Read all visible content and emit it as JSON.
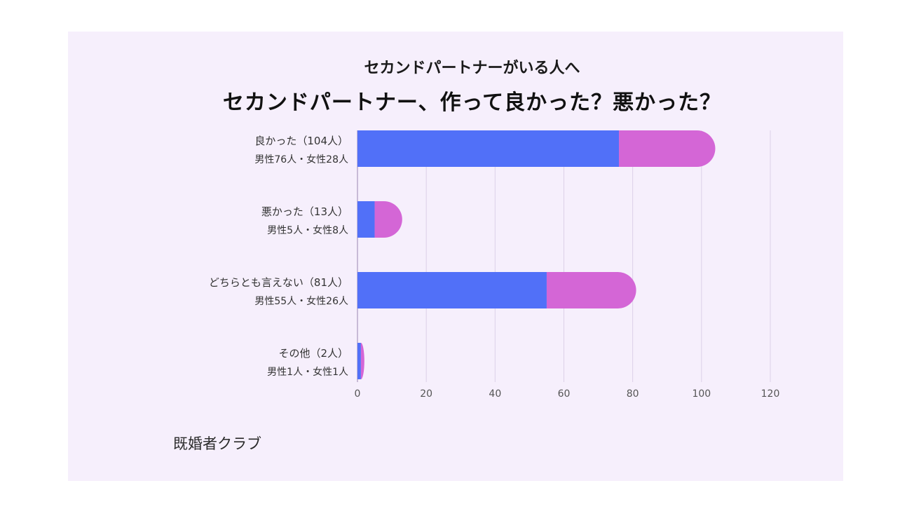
{
  "chart_data": {
    "type": "bar",
    "orientation": "horizontal",
    "stacked": true,
    "subtitle": "セカンドパートナーがいる人へ",
    "title": "セカンドパートナー、作って良かった？悪かった？",
    "source": "既婚者クラブ",
    "categories": [
      {
        "label": "良かった（104人）",
        "detail": "男性76人・女性28人"
      },
      {
        "label": "悪かった（13人）",
        "detail": "男性5人・女性8人"
      },
      {
        "label": "どちらとも言えない（81人）",
        "detail": "男性55人・女性26人"
      },
      {
        "label": "その他（2人）",
        "detail": "男性1人・女性1人"
      }
    ],
    "series": [
      {
        "key": "male",
        "values": [
          76,
          5,
          55,
          1
        ],
        "color": "#5170f8"
      },
      {
        "key": "female",
        "values": [
          28,
          8,
          26,
          1
        ],
        "color": "#d466d6"
      }
    ],
    "xlim": [
      0,
      120
    ],
    "xticks": [
      "0",
      "20",
      "40",
      "60",
      "80",
      "100",
      "120"
    ],
    "grid": true,
    "legend": "none",
    "colors": {
      "background": "#f6effc",
      "grid": "#dcd0e8",
      "axis": "#b9a8c9"
    }
  }
}
